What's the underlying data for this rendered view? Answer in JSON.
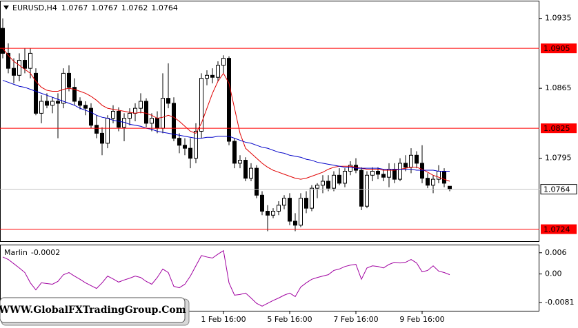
{
  "chart_data": [
    {
      "type": "candlestick",
      "title": "EURUSD,H4",
      "categories": [
        null,
        null,
        null,
        null,
        null,
        null,
        null,
        null,
        null,
        null,
        null,
        null,
        null,
        null,
        null,
        null,
        null,
        null,
        null,
        null,
        null,
        null,
        null,
        null,
        null,
        null,
        null,
        null,
        null,
        null,
        null,
        null,
        null,
        null,
        null,
        null,
        null,
        null,
        null,
        null,
        "1 Feb 16:00",
        null,
        null,
        null,
        null,
        null,
        null,
        null,
        null,
        null,
        null,
        null,
        "5 Feb 16:00",
        null,
        null,
        null,
        null,
        null,
        null,
        null,
        null,
        null,
        null,
        null,
        "7 Feb 16:00",
        null,
        null,
        null,
        null,
        null,
        null,
        null,
        null,
        null,
        null,
        null,
        "9 Feb 16:00",
        null,
        null,
        null,
        null,
        null
      ],
      "open": [
        1.0925,
        1.09,
        1.0885,
        1.0878,
        1.0893,
        1.0885,
        1.088,
        1.084,
        1.0852,
        1.0848,
        1.0852,
        1.085,
        1.088,
        1.0866,
        1.0852,
        1.0848,
        1.0845,
        1.0828,
        1.082,
        1.081,
        1.0835,
        1.0842,
        1.0826,
        1.0835,
        1.084,
        1.0845,
        1.0852,
        1.083,
        1.0835,
        1.0825,
        1.0855,
        1.085,
        1.0815,
        1.0808,
        1.0805,
        1.0795,
        1.0822,
        1.0875,
        1.0878,
        1.0876,
        1.0888,
        1.0895,
        1.0812,
        1.079,
        1.0793,
        1.0775,
        1.0785,
        1.0758,
        1.0742,
        1.0738,
        1.0742,
        1.0748,
        1.0755,
        1.0732,
        1.0728,
        1.0755,
        1.0745,
        1.0765,
        1.0768,
        1.0772,
        1.0765,
        1.0778,
        1.077,
        1.0782,
        1.0788,
        1.0783,
        1.0747,
        1.0778,
        1.0782,
        1.0779,
        1.0776,
        1.0784,
        1.0774,
        1.079,
        1.0786,
        1.0798,
        1.079,
        1.0775,
        1.0768,
        1.0774,
        1.0782,
        1.0767
      ],
      "high": [
        1.0935,
        1.091,
        1.0895,
        1.09,
        1.0905,
        1.0905,
        1.0885,
        1.0858,
        1.086,
        1.0856,
        1.086,
        1.0885,
        1.0888,
        1.0875,
        1.0856,
        1.0852,
        1.085,
        1.0838,
        1.0826,
        1.0838,
        1.0848,
        1.0846,
        1.084,
        1.0845,
        1.085,
        1.086,
        1.0855,
        1.084,
        1.0842,
        1.088,
        1.089,
        1.0856,
        1.082,
        1.0815,
        1.0815,
        1.083,
        1.088,
        1.0883,
        1.0885,
        1.0892,
        1.0898,
        1.0897,
        1.0815,
        1.0798,
        1.0796,
        1.079,
        1.0788,
        1.0762,
        1.0748,
        1.0745,
        1.0752,
        1.0758,
        1.076,
        1.074,
        1.076,
        1.0762,
        1.0768,
        1.077,
        1.0778,
        1.0778,
        1.0782,
        1.0785,
        1.0785,
        1.0792,
        1.0795,
        1.0786,
        1.0782,
        1.0786,
        1.0786,
        1.0784,
        1.079,
        1.079,
        1.0795,
        1.0798,
        1.0805,
        1.0802,
        1.0808,
        1.078,
        1.0778,
        1.0788,
        1.0785,
        1.0767
      ],
      "low": [
        1.0895,
        1.088,
        1.087,
        1.0872,
        1.088,
        1.0875,
        1.0838,
        1.083,
        1.0845,
        1.084,
        1.0815,
        1.0845,
        1.0862,
        1.0848,
        1.0844,
        1.0838,
        1.0825,
        1.0815,
        1.0798,
        1.0805,
        1.083,
        1.0822,
        1.0812,
        1.0828,
        1.0832,
        1.084,
        1.0826,
        1.0822,
        1.082,
        1.082,
        1.0845,
        1.0812,
        1.08,
        1.0798,
        1.0785,
        1.079,
        1.0815,
        1.0868,
        1.087,
        1.0872,
        1.088,
        1.0808,
        1.0785,
        1.0785,
        1.0772,
        1.0772,
        1.0755,
        1.0738,
        1.0722,
        1.0735,
        1.0738,
        1.0744,
        1.0728,
        1.0722,
        1.0726,
        1.074,
        1.0742,
        1.0755,
        1.076,
        1.0762,
        1.0762,
        1.0768,
        1.0766,
        1.0778,
        1.078,
        1.0743,
        1.0745,
        1.0772,
        1.0774,
        1.0772,
        1.0766,
        1.077,
        1.0772,
        1.0782,
        1.078,
        1.0785,
        1.077,
        1.0765,
        1.076,
        1.077,
        1.0766,
        1.0762
      ],
      "close": [
        1.09,
        1.0885,
        1.0878,
        1.0893,
        1.0885,
        1.09,
        1.084,
        1.0852,
        1.0848,
        1.0852,
        1.085,
        1.088,
        1.0866,
        1.0852,
        1.0848,
        1.0845,
        1.0828,
        1.082,
        1.081,
        1.0835,
        1.0842,
        1.0826,
        1.0835,
        1.084,
        1.0845,
        1.0852,
        1.083,
        1.0835,
        1.0825,
        1.0855,
        1.085,
        1.0815,
        1.0808,
        1.0805,
        1.0795,
        1.0822,
        1.0875,
        1.0878,
        1.0876,
        1.0888,
        1.0895,
        1.0812,
        1.079,
        1.0793,
        1.0775,
        1.0785,
        1.0758,
        1.0742,
        1.0738,
        1.0742,
        1.0748,
        1.0755,
        1.0732,
        1.0728,
        1.0755,
        1.0745,
        1.0765,
        1.0768,
        1.0772,
        1.0765,
        1.0778,
        1.077,
        1.0782,
        1.0788,
        1.0783,
        1.0747,
        1.0778,
        1.0782,
        1.0779,
        1.0776,
        1.0784,
        1.0774,
        1.079,
        1.0786,
        1.0798,
        1.079,
        1.0775,
        1.0768,
        1.0774,
        1.0782,
        1.077,
        1.0764
      ],
      "series": [
        {
          "color": "#e00000",
          "values": [
            1.0905,
            1.0898,
            1.0892,
            1.0888,
            1.0884,
            1.088,
            1.0872,
            1.0866,
            1.0863,
            1.0862,
            1.0862,
            1.0864,
            1.0865,
            1.0864,
            1.0862,
            1.086,
            1.0857,
            1.0853,
            1.0848,
            1.0845,
            1.0844,
            1.0843,
            1.0842,
            1.0841,
            1.084,
            1.0841,
            1.084,
            1.0838,
            1.0835,
            1.0836,
            1.0838,
            1.0836,
            1.0832,
            1.0827,
            1.0822,
            1.082,
            1.083,
            1.0845,
            1.086,
            1.0872,
            1.088,
            1.087,
            1.0845,
            1.082,
            1.0805,
            1.08,
            1.0795,
            1.079,
            1.0786,
            1.0783,
            1.0781,
            1.0779,
            1.0777,
            1.0775,
            1.0774,
            1.0775,
            1.0777,
            1.0779,
            1.0781,
            1.0784,
            1.0786,
            1.0787,
            1.0787,
            1.0787,
            1.0786,
            1.0785,
            1.0784,
            1.0784,
            1.0784,
            1.0783,
            1.0783,
            1.0783,
            1.0784,
            1.0785,
            1.0786,
            1.0786,
            1.0784,
            1.0781,
            1.0778,
            1.0776,
            1.0774,
            1.0772
          ]
        },
        {
          "color": "#0000c8",
          "values": [
            1.0873,
            1.0871,
            1.0869,
            1.0867,
            1.0866,
            1.0864,
            1.0862,
            1.086,
            1.0858,
            1.0856,
            1.0854,
            1.0852,
            1.085,
            1.0848,
            1.0845,
            1.0843,
            1.0841,
            1.0838,
            1.0836,
            1.0835,
            1.0833,
            1.0832,
            1.0831,
            1.0829,
            1.0828,
            1.0827,
            1.0825,
            1.0824,
            1.0822,
            1.0821,
            1.082,
            1.0819,
            1.0818,
            1.0817,
            1.0816,
            1.0815,
            1.0815,
            1.0816,
            1.0816,
            1.0817,
            1.0817,
            1.0817,
            1.0815,
            1.0813,
            1.0811,
            1.081,
            1.0808,
            1.0806,
            1.0805,
            1.0803,
            1.0801,
            1.08,
            1.0798,
            1.0797,
            1.0796,
            1.0794,
            1.0793,
            1.0791,
            1.079,
            1.0789,
            1.0788,
            1.0787,
            1.0786,
            1.0786,
            1.0785,
            1.0785,
            1.0785,
            1.0785,
            1.0785,
            1.0784,
            1.0784,
            1.0784,
            1.0784,
            1.0784,
            1.0784,
            1.0783,
            1.0783,
            1.0783,
            1.0783,
            1.0782,
            1.0782,
            1.0782
          ]
        }
      ],
      "ylim": [
        1.0712,
        1.0952
      ],
      "yticks": [
        1.0935,
        1.0865,
        1.0795
      ],
      "hlines": [
        1.0905,
        1.0825,
        1.0724
      ],
      "hline_color": "#ff0000",
      "up_color": "#ffffff",
      "down_color": "#000000"
    },
    {
      "type": "line",
      "title": "Marlin",
      "series": [
        {
          "color": "#a000a0",
          "values": [
            0.0048,
            0.0041,
            0.0029,
            0.0017,
            0.0004,
            -0.0025,
            -0.0045,
            -0.0025,
            -0.0027,
            -0.0029,
            -0.0021,
            -0.0002,
            0.0004,
            -0.0006,
            -0.0015,
            -0.0025,
            -0.0033,
            -0.0041,
            -0.0025,
            -0.0006,
            -0.0014,
            -0.0023,
            -0.0017,
            -0.0012,
            -0.0006,
            -0.001,
            -0.0021,
            -0.0029,
            -0.001,
            0.0014,
            0.0004,
            -0.0035,
            -0.0039,
            -0.0029,
            -0.0006,
            0.0023,
            0.0052,
            0.0048,
            0.0045,
            0.0056,
            0.0066,
            -0.0025,
            -0.006,
            -0.0058,
            -0.0054,
            -0.0068,
            -0.0083,
            -0.0091,
            -0.0083,
            -0.0075,
            -0.0068,
            -0.006,
            -0.0054,
            -0.0064,
            -0.0037,
            -0.0025,
            -0.0015,
            -0.001,
            -0.0006,
            -0.0002,
            0.001,
            0.0014,
            0.0021,
            0.0025,
            0.0027,
            -0.0015,
            0.0017,
            0.0023,
            0.0021,
            0.0017,
            0.0027,
            0.0033,
            0.0031,
            0.0033,
            0.0041,
            0.0031,
            0.0006,
            0.001,
            0.0023,
            0.0008,
            0.0004,
            -0.0002
          ]
        }
      ],
      "ylim": [
        -0.0106,
        0.0081
      ],
      "yticks": [
        0.006,
        {
          "value": 0,
          "label": "0.00"
        },
        -0.0081
      ]
    }
  ],
  "watermark": "WWW.GlobalFXTradingGroup.Com"
}
